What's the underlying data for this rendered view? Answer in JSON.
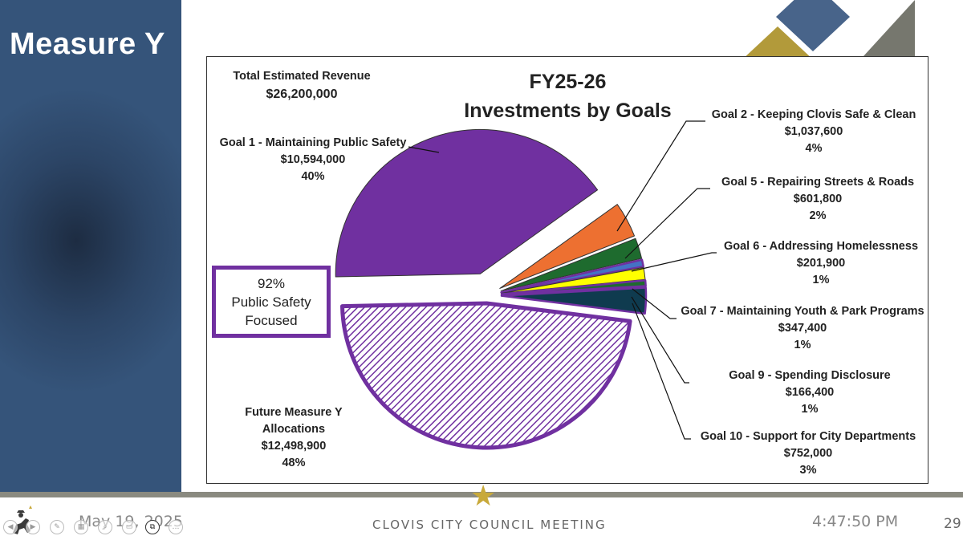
{
  "slide": {
    "title": "Measure Y",
    "date": "May 19, 2025",
    "footer_center": "CLOVIS CITY COUNCIL MEETING",
    "time": "4:47:50 PM",
    "page_number": "29"
  },
  "colors": {
    "sidebar": "#2c4566",
    "purple": "#7030a0",
    "orange": "#ed7031",
    "green": "#1e6b2e",
    "yellow": "#ffff00",
    "dark_teal": "#0f3b4f",
    "blue_thin": "#4472c4",
    "gold": "#b29a3a",
    "slate": "#48648a",
    "grey": "#76776e"
  },
  "chart_data": {
    "type": "pie",
    "title": "FY25-26 Investments by Goals",
    "title_lines": [
      "FY25-26",
      "Investments by Goals"
    ],
    "total_label": "Total Estimated Revenue",
    "total_value": "$26,200,000",
    "callout_lines": [
      "92%",
      "Public Safety",
      "Focused"
    ],
    "slices": [
      {
        "name_lines": [
          "Goal 1 - Maintaining Public Safety"
        ],
        "amount": "$10,594,000",
        "percent": "40%",
        "value": 10594000,
        "color": "#7030a0",
        "explode": 28
      },
      {
        "name_lines": [
          "Goal 2 - Keeping Clovis Safe & Clean"
        ],
        "amount": "$1,037,600",
        "percent": "4%",
        "value": 1037600,
        "color": "#ed7031",
        "explode": 18
      },
      {
        "name_lines": [
          "Goal 5 - Repairing Streets & Roads"
        ],
        "amount": "$601,800",
        "percent": "2%",
        "value": 601800,
        "color": "#1e6b2e",
        "explode": 18
      },
      {
        "name_lines": [
          "Goal 6 - Addressing Homelessness"
        ],
        "amount": "$201,900",
        "percent": "1%",
        "value": 201900,
        "color": "#4472c4",
        "explode": 18,
        "outline": "#7030a0"
      },
      {
        "name_lines": [
          "Goal 7 - Maintaining Youth & Park Programs"
        ],
        "amount": "$347,400",
        "percent": "1%",
        "value": 347400,
        "color": "#ffff00",
        "explode": 18
      },
      {
        "name_lines": [
          "Goal 9 - Spending Disclosure"
        ],
        "amount": "$166,400",
        "percent": "1%",
        "value": 166400,
        "color": "#1e6b2e",
        "explode": 18,
        "outline": "#7030a0"
      },
      {
        "name_lines": [
          "Goal 10 - Support for City Departments"
        ],
        "amount": "$752,000",
        "percent": "3%",
        "value": 752000,
        "color": "#0f3b4f",
        "explode": 18,
        "outline": "#7030a0"
      },
      {
        "name_lines": [
          "Future Measure Y",
          "Allocations"
        ],
        "amount": "$12,498,900",
        "percent": "48%",
        "value": 12498900,
        "color": "hatch",
        "explode": 10,
        "outline": "#7030a0"
      }
    ]
  }
}
